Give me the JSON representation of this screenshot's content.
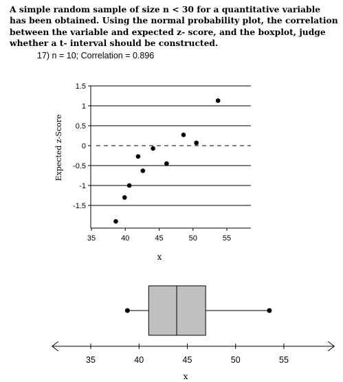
{
  "question": {
    "text": "A simple random sample of size n < 30 for a quantitative variable has been obtained. Using the normal probability plot, the correlation between the variable and expected z- score, and the boxplot, judge whether a t- interval should be constructed."
  },
  "problem": {
    "label": "17) n = 10; Correlation = 0.896"
  },
  "chart_data": [
    {
      "type": "scatter",
      "xlabel": "x",
      "ylabel": "Expected z-Score",
      "xlim": [
        35,
        58
      ],
      "ylim": [
        -2.0,
        1.5
      ],
      "x_ticks": [
        35,
        40,
        45,
        50,
        55
      ],
      "y_ticks": [
        1.5,
        1,
        0.5,
        0,
        -0.5,
        -1,
        -1.5
      ],
      "y_tick_labels": [
        "1.5",
        "1",
        "0.5",
        "0",
        "-0.5",
        "-1",
        "-1.5"
      ],
      "grid": "horizontal lines at y ticks",
      "reference_line": 0,
      "x": [
        38.6,
        39.9,
        40.6,
        41.9,
        42.6,
        44.1,
        46.1,
        48.6,
        50.5,
        53.7
      ],
      "y": [
        -1.9,
        -1.3,
        -1.0,
        -0.27,
        -0.63,
        -0.07,
        -0.45,
        0.27,
        0.07,
        1.13
      ]
    },
    {
      "type": "boxplot",
      "xlabel": "x",
      "xlim": [
        31,
        60
      ],
      "x_ticks": [
        35,
        40,
        45,
        50,
        55
      ],
      "min": 38.8,
      "q1": 41.0,
      "median": 43.9,
      "q3": 46.9,
      "max": 53.5
    }
  ]
}
